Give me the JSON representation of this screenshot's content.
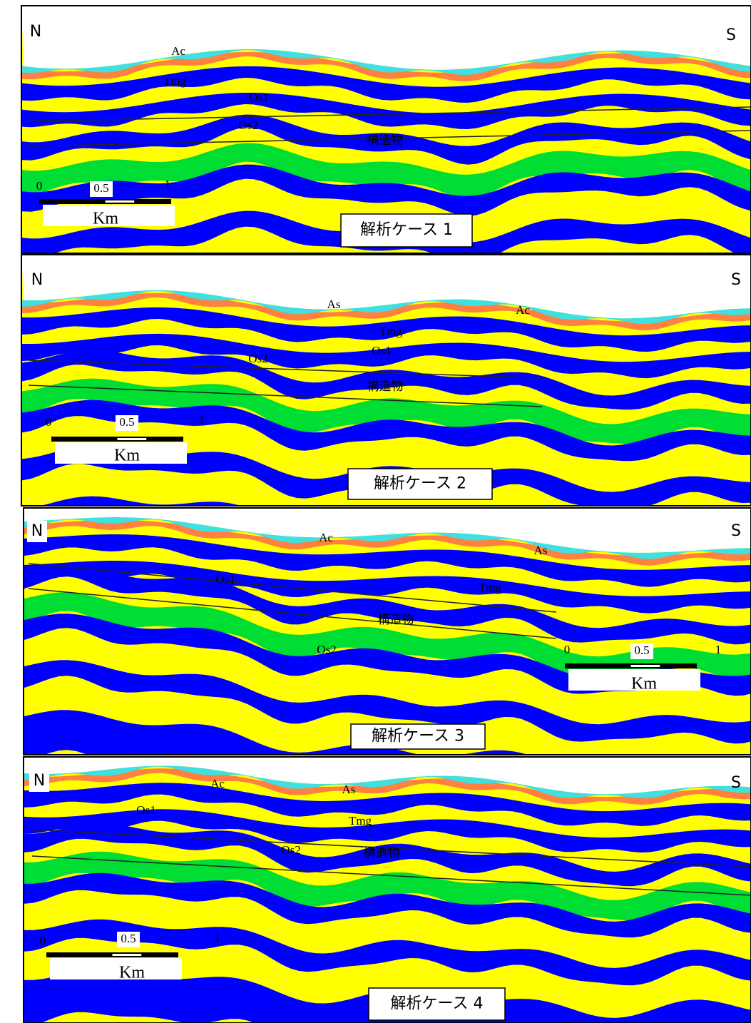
{
  "panels": [
    {
      "north": "N",
      "south": "S",
      "case_title": "解析ケース 1",
      "scale": {
        "ticks": [
          "0",
          "0.5",
          "1"
        ],
        "unit": "Km"
      },
      "layer_labels": [
        "Ac",
        "Tmg",
        "Os1",
        "Os2",
        "構造物"
      ]
    },
    {
      "north": "N",
      "south": "S",
      "case_title": "解析ケース 2",
      "scale": {
        "ticks": [
          "0",
          "0.5",
          "1"
        ],
        "unit": "Km"
      },
      "layer_labels": [
        "As",
        "Ac",
        "Tmg",
        "Os1",
        "Os2",
        "構造物"
      ]
    },
    {
      "north": "N",
      "south": "S",
      "case_title": "解析ケース 3",
      "scale": {
        "ticks": [
          "0",
          "0.5",
          "1"
        ],
        "unit": "Km"
      },
      "layer_labels": [
        "Ac",
        "As",
        "Os1",
        "Tmg",
        "構造物",
        "Os2"
      ]
    },
    {
      "north": "N",
      "south": "S",
      "case_title": "解析ケース 4",
      "scale": {
        "ticks": [
          "0",
          "0.5",
          "1"
        ],
        "unit": "Km"
      },
      "layer_labels": [
        "Ac",
        "As",
        "Os1",
        "Tmg",
        "Os2",
        "構造物"
      ]
    }
  ]
}
